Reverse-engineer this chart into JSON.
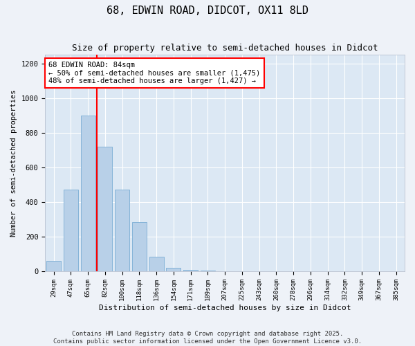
{
  "title": "68, EDWIN ROAD, DIDCOT, OX11 8LD",
  "subtitle": "Size of property relative to semi-detached houses in Didcot",
  "xlabel": "Distribution of semi-detached houses by size in Didcot",
  "ylabel": "Number of semi-detached properties",
  "categories": [
    "29sqm",
    "47sqm",
    "65sqm",
    "82sqm",
    "100sqm",
    "118sqm",
    "136sqm",
    "154sqm",
    "171sqm",
    "189sqm",
    "207sqm",
    "225sqm",
    "243sqm",
    "260sqm",
    "278sqm",
    "296sqm",
    "314sqm",
    "332sqm",
    "349sqm",
    "367sqm",
    "385sqm"
  ],
  "values": [
    60,
    475,
    900,
    720,
    475,
    285,
    85,
    20,
    10,
    5,
    0,
    0,
    0,
    0,
    0,
    0,
    0,
    0,
    0,
    0,
    0
  ],
  "bar_color": "#b8d0e8",
  "bar_edge_color": "#7aadd4",
  "red_line_x": 2.5,
  "annotation_line1": "68 EDWIN ROAD: 84sqm",
  "annotation_line2": "← 50% of semi-detached houses are smaller (1,475)",
  "annotation_line3": "48% of semi-detached houses are larger (1,427) →",
  "ylim": [
    0,
    1250
  ],
  "yticks": [
    0,
    200,
    400,
    600,
    800,
    1000,
    1200
  ],
  "fig_bg_color": "#eef2f8",
  "plot_bg_color": "#dce8f4",
  "footer": "Contains HM Land Registry data © Crown copyright and database right 2025.\nContains public sector information licensed under the Open Government Licence v3.0.",
  "title_fontsize": 11,
  "subtitle_fontsize": 9,
  "annotation_fontsize": 7.5,
  "footer_fontsize": 6.5,
  "xlabel_fontsize": 8,
  "ylabel_fontsize": 7.5
}
